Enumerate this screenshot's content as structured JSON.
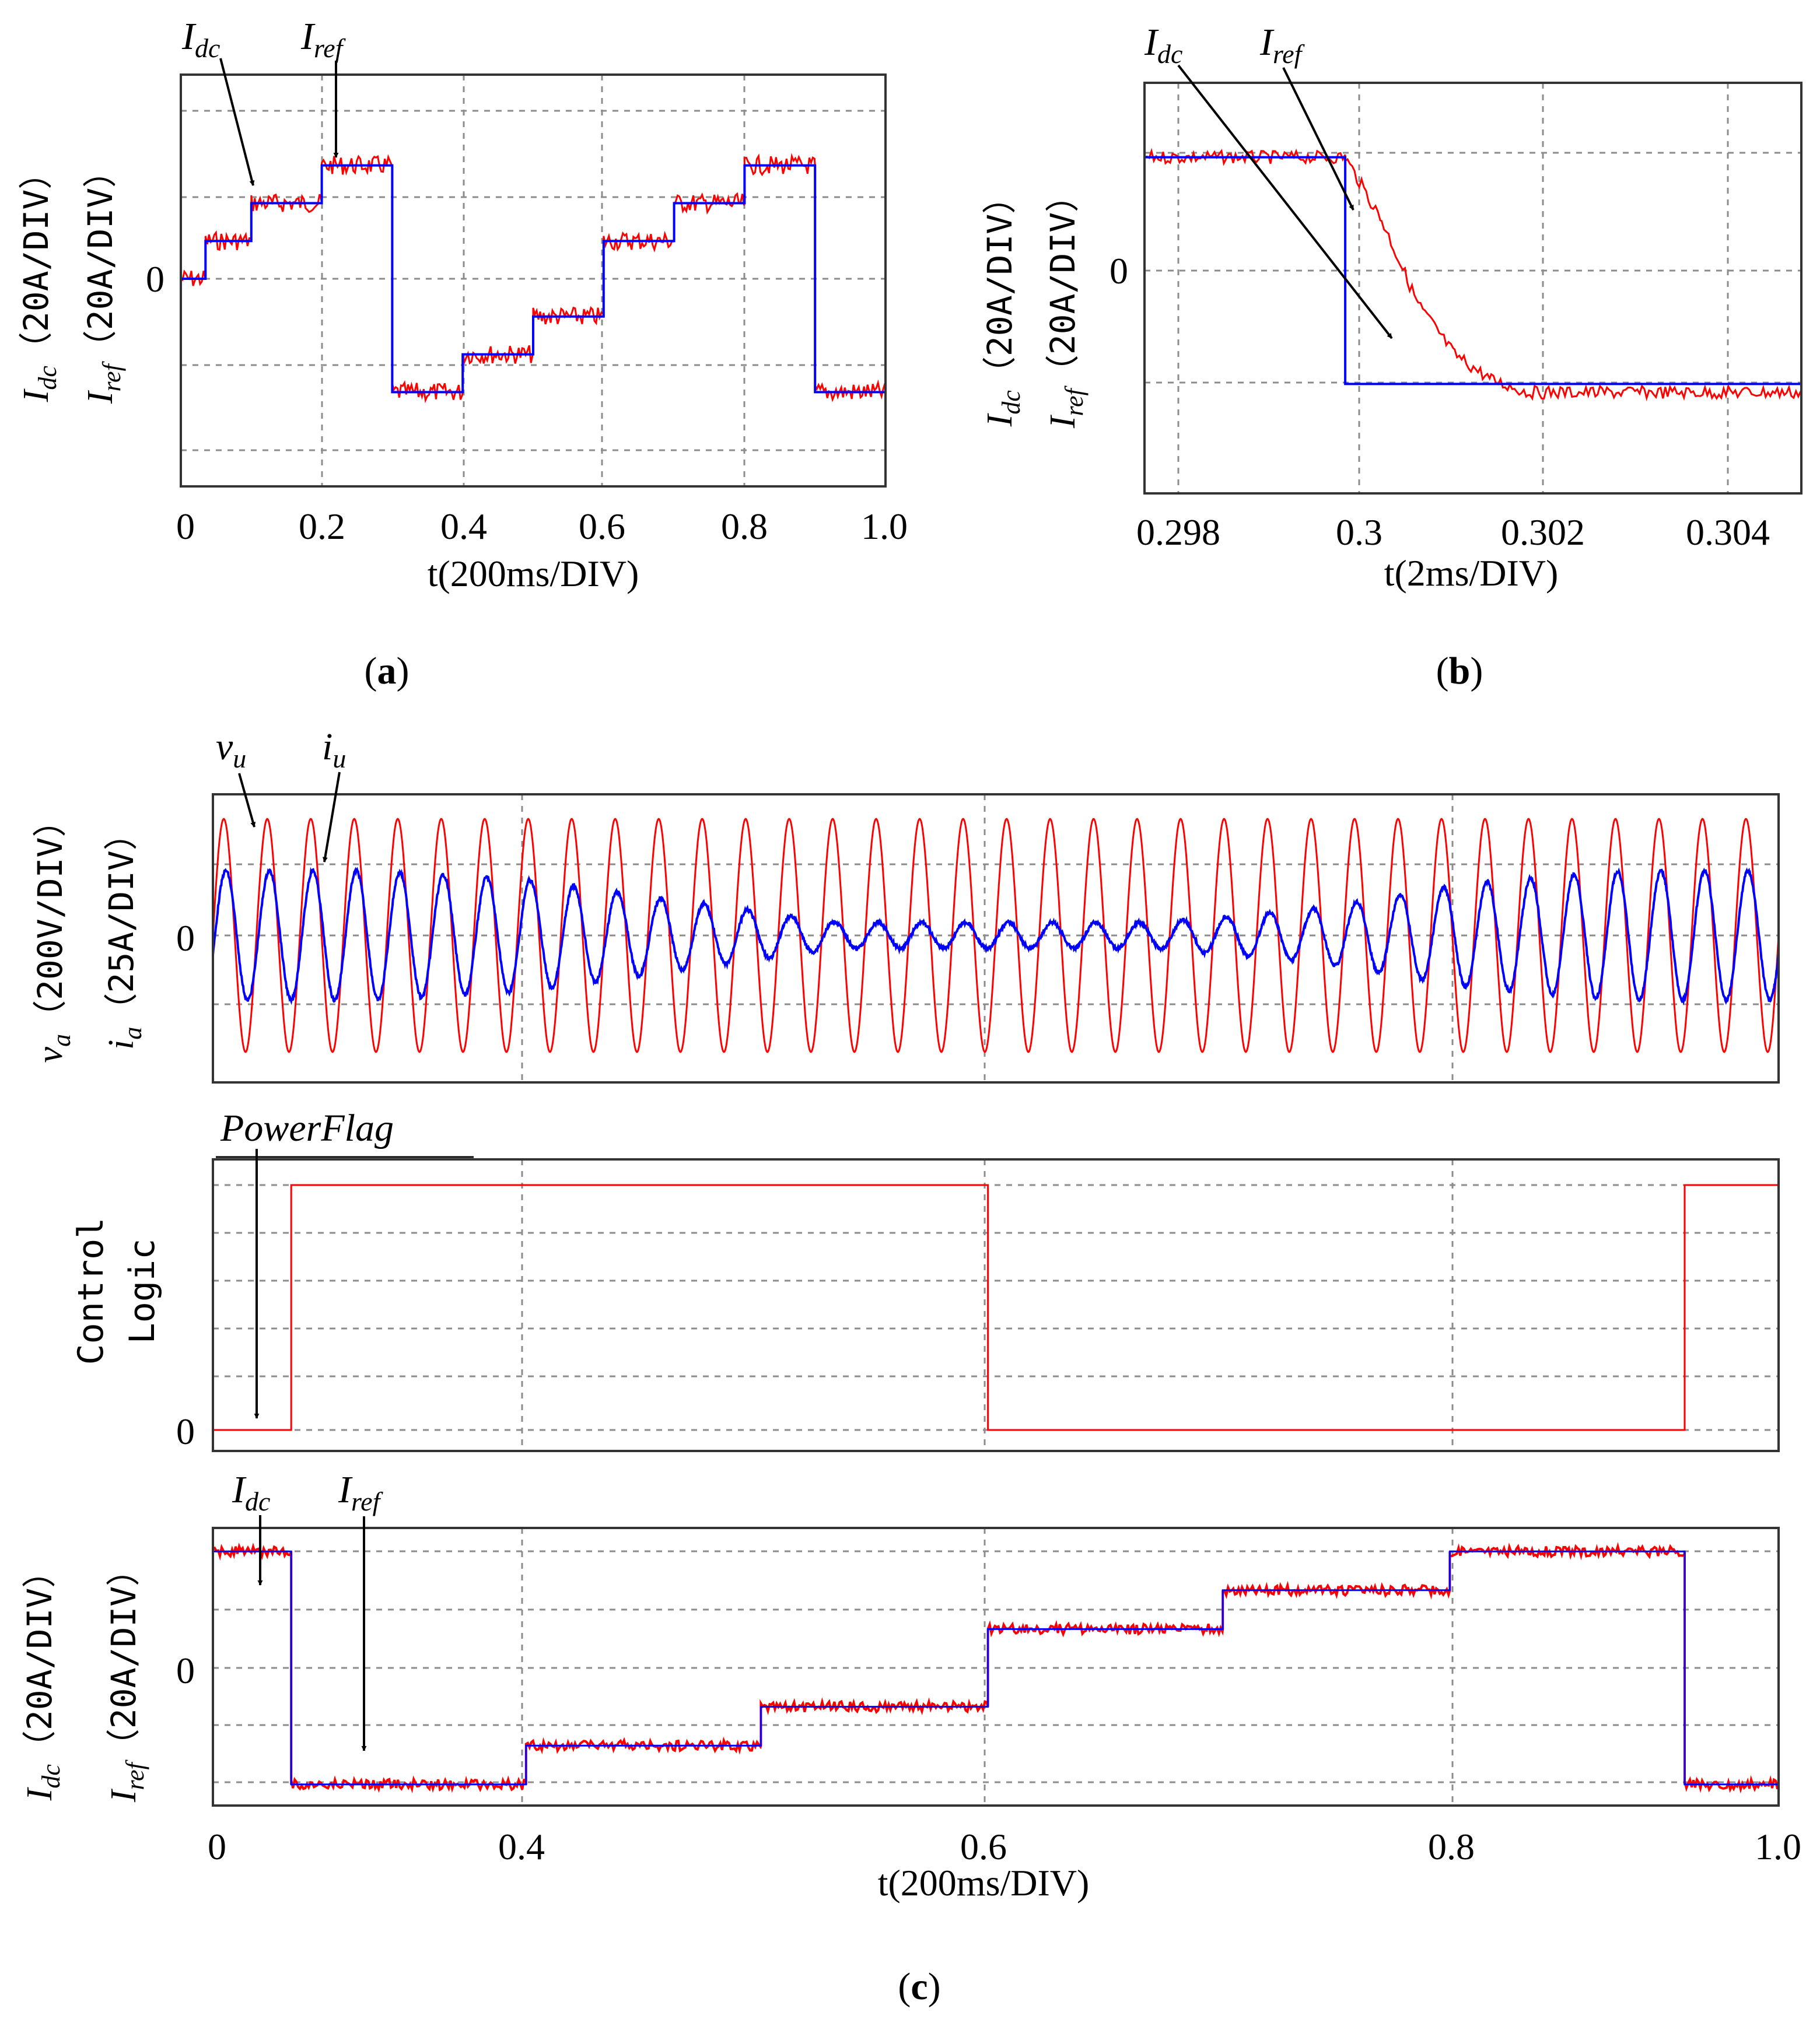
{
  "panels": {
    "a": {
      "caption_letter": "a",
      "zero_label": "0",
      "x_ticks": [
        "0",
        "0.2",
        "0.4",
        "0.6",
        "0.8",
        "1.0"
      ],
      "xlabel": "t(200ms/DIV)",
      "ylabel_1": {
        "sym": "I",
        "sub": "dc",
        "unit": "（20A/DIV）"
      },
      "ylabel_2": {
        "sym": "I",
        "sub": "ref",
        "unit": "（20A/DIV）"
      },
      "annotations": [
        {
          "sym": "I",
          "sub": "dc"
        },
        {
          "sym": "I",
          "sub": "ref"
        }
      ]
    },
    "b": {
      "caption_letter": "b",
      "zero_label": "0",
      "x_ticks": [
        "0.298",
        "0.3",
        "0.302",
        "0.304"
      ],
      "xlabel": "t(2ms/DIV)",
      "ylabel_1": {
        "sym": "I",
        "sub": "dc",
        "unit": "（20A/DIV）"
      },
      "ylabel_2": {
        "sym": "I",
        "sub": "ref",
        "unit": "（20A/DIV）"
      },
      "annotations": [
        {
          "sym": "I",
          "sub": "dc"
        },
        {
          "sym": "I",
          "sub": "ref"
        }
      ]
    },
    "c": {
      "caption_letter": "c",
      "top": {
        "zero_label": "0",
        "ylabel_1": {
          "sym": "v",
          "sub": "a",
          "unit": "（200V/DIV）"
        },
        "ylabel_2": {
          "sym": "i",
          "sub": "a",
          "unit": "（25A/DIV）"
        },
        "annotations": [
          {
            "sym": "v",
            "sub": "u"
          },
          {
            "sym": "i",
            "sub": "u"
          }
        ]
      },
      "middle": {
        "zero_label": "0",
        "ylabel_line1": "Control",
        "ylabel_line2": "Logic",
        "annotation": "PowerFlag"
      },
      "bottom": {
        "zero_label": "0",
        "ylabel_1": {
          "sym": "I",
          "sub": "dc",
          "unit": "（20A/DIV）"
        },
        "ylabel_2": {
          "sym": "I",
          "sub": "ref",
          "unit": "（20A/DIV）"
        },
        "annotations": [
          {
            "sym": "I",
            "sub": "dc"
          },
          {
            "sym": "I",
            "sub": "ref"
          }
        ]
      },
      "x_ticks": [
        "0",
        "0.4",
        "0.6",
        "0.8",
        "1.0"
      ],
      "xlabel": "t(200ms/DIV)"
    }
  },
  "colors": {
    "measured": "#ff0000",
    "reference": "#0000ff",
    "grid": "#8c8c8c"
  },
  "chart_data": [
    {
      "panel": "a",
      "type": "line",
      "xlabel": "t(200ms/DIV)",
      "ylabel": "Idc, Iref (20A/DIV)",
      "xlim": [
        0,
        1.0
      ],
      "grid": true,
      "series": [
        {
          "name": "Iref",
          "x": [
            0,
            0.035,
            0.035,
            0.1,
            0.1,
            0.2,
            0.2,
            0.3,
            0.3,
            0.4,
            0.4,
            0.5,
            0.5,
            0.6,
            0.6,
            0.7,
            0.7,
            0.8,
            0.8,
            0.9,
            0.9,
            1.0
          ],
          "y": [
            0,
            0,
            0.9,
            0.9,
            1.8,
            1.8,
            2.7,
            2.7,
            -2.7,
            -2.7,
            -1.8,
            -1.8,
            -0.9,
            -0.9,
            0.9,
            0.9,
            1.8,
            1.8,
            2.7,
            2.7,
            -2.7,
            -2.7
          ]
        },
        {
          "name": "Idc",
          "x": [
            0,
            0.035,
            0.035,
            0.1,
            0.1,
            0.2,
            0.2,
            0.3,
            0.3,
            0.4,
            0.4,
            0.5,
            0.5,
            0.6,
            0.6,
            0.7,
            0.7,
            0.8,
            0.8,
            0.9,
            0.9,
            1.0
          ],
          "y": [
            0,
            0,
            0.9,
            0.9,
            1.8,
            1.8,
            2.7,
            2.7,
            -2.7,
            -2.7,
            -1.8,
            -1.8,
            -0.9,
            -0.9,
            0.9,
            0.9,
            1.8,
            1.8,
            2.7,
            2.7,
            -2.7,
            -2.7
          ]
        }
      ]
    },
    {
      "panel": "b",
      "type": "line",
      "xlabel": "t(2ms/DIV)",
      "ylabel": "Idc, Iref (20A/DIV)",
      "xlim": [
        0.2978,
        0.305
      ],
      "grid": true,
      "series": [
        {
          "name": "Iref",
          "x": [
            0.2978,
            0.3,
            0.3,
            0.305
          ],
          "y": [
            2.7,
            2.7,
            -2.7,
            -2.7
          ]
        },
        {
          "name": "Idc",
          "x": [
            0.2978,
            0.3,
            0.3004,
            0.3008,
            0.3012,
            0.3016,
            0.302,
            0.305
          ],
          "y": [
            2.7,
            2.7,
            1.2,
            -0.8,
            -2.0,
            -2.6,
            -2.9,
            -2.9
          ]
        }
      ]
    },
    {
      "panel": "c-top",
      "type": "line",
      "ylabel": "va (200V/DIV), ia (25A/DIV)",
      "xlim": [
        0,
        1.0
      ],
      "grid": true,
      "series": [
        {
          "name": "vu",
          "amplitude_div": 2.7,
          "frequency_hz": 50
        },
        {
          "name": "iu",
          "frequency_hz": 50,
          "envelope_t": [
            0,
            0.1,
            0.2,
            0.3,
            0.4,
            0.5,
            0.6,
            0.7,
            0.8,
            0.9,
            1.0
          ],
          "envelope_amp_div": [
            1.5,
            1.5,
            1.3,
            0.8,
            0.3,
            0.3,
            0.3,
            0.6,
            1.2,
            1.5,
            1.5
          ]
        }
      ]
    },
    {
      "panel": "c-middle",
      "type": "line",
      "ylabel": "Control Logic",
      "xlim": [
        0,
        1.0
      ],
      "series": [
        {
          "name": "PowerFlag",
          "x": [
            0,
            0.05,
            0.05,
            0.495,
            0.495,
            0.94,
            0.94,
            1.0
          ],
          "y": [
            0,
            0,
            1,
            1,
            0,
            0,
            1,
            1
          ]
        }
      ]
    },
    {
      "panel": "c-bottom",
      "type": "line",
      "xlabel": "t(200ms/DIV)",
      "ylabel": "Idc, Iref (20A/DIV)",
      "xlim": [
        0,
        1.0
      ],
      "grid": true,
      "series": [
        {
          "name": "Iref",
          "x": [
            0,
            0.05,
            0.05,
            0.2,
            0.2,
            0.35,
            0.35,
            0.495,
            0.495,
            0.645,
            0.645,
            0.79,
            0.79,
            0.94,
            0.94,
            1.0
          ],
          "y": [
            2.7,
            2.7,
            -2.7,
            -2.7,
            -1.8,
            -1.8,
            -0.9,
            -0.9,
            0.9,
            0.9,
            1.8,
            1.8,
            2.7,
            2.7,
            -2.7,
            -2.7
          ]
        },
        {
          "name": "Idc",
          "x": [
            0,
            0.05,
            0.05,
            0.2,
            0.2,
            0.35,
            0.35,
            0.495,
            0.495,
            0.645,
            0.645,
            0.79,
            0.79,
            0.94,
            0.94,
            1.0
          ],
          "y": [
            2.7,
            2.7,
            -2.7,
            -2.7,
            -1.8,
            -1.8,
            -0.9,
            -0.9,
            0.9,
            0.9,
            1.8,
            1.8,
            2.7,
            2.7,
            -2.7,
            -2.7
          ]
        }
      ]
    }
  ]
}
